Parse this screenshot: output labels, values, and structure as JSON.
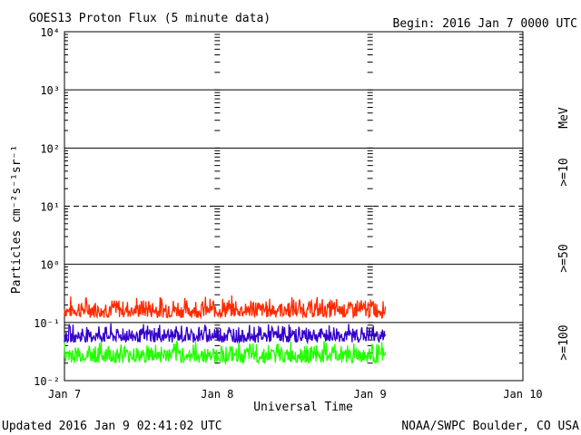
{
  "header": {
    "title": "GOES13 Proton Flux (5 minute data)",
    "begin": "Begin: 2016 Jan 7 0000 UTC"
  },
  "footer": {
    "updated": "Updated 2016 Jan  9 02:41:02 UTC",
    "credit": "NOAA/SWPC Boulder, CO USA"
  },
  "chart_data": {
    "type": "line",
    "title": "GOES13 Proton Flux (5 minute data)",
    "xlabel": "Universal Time",
    "ylabel": "Particles cm⁻²s⁻¹sr⁻¹",
    "x_ticks": [
      "Jan 7",
      "Jan 8",
      "Jan 9",
      "Jan 10"
    ],
    "xlim": [
      0,
      3
    ],
    "x_units": "days since Jan 7 0000 UTC",
    "data_end_x": 2.1,
    "y_scale": "log",
    "ylim": [
      0.01,
      10000
    ],
    "y_ticks": [
      "10⁻²",
      "10⁻¹",
      "10⁰",
      "10¹",
      "10²",
      "10³",
      "10⁴"
    ],
    "legend_placement": "right",
    "legend_unit": "MeV",
    "series": [
      {
        "name": ">=10",
        "color": "#ff2a00",
        "baseline": 0.16,
        "noise_low": 0.12,
        "noise_high": 0.3
      },
      {
        "name": ">=50",
        "color": "#3300cc",
        "baseline": 0.065,
        "noise_low": 0.045,
        "noise_high": 0.1
      },
      {
        "name": ">=100",
        "color": "#22ff00",
        "baseline": 0.03,
        "noise_low": 0.02,
        "noise_high": 0.05
      }
    ],
    "grid": {
      "horizontal_decades": true,
      "dashed_line_at": 10,
      "day_dividers": true
    }
  }
}
